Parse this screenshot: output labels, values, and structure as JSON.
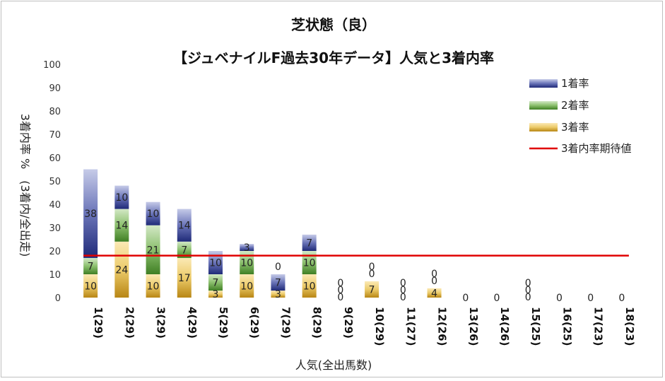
{
  "chart_data": {
    "type": "bar",
    "stacked": true,
    "title": "芝状態（良）",
    "subtitle": "【ジュベナイルF過去30年データ】人気と3着内率",
    "xlabel": "人気(全出馬数)",
    "ylabel": "3着内率 %　(3着内/全出走)",
    "ylim": [
      0,
      100
    ],
    "yticks": [
      0,
      10,
      20,
      30,
      40,
      50,
      60,
      70,
      80,
      90,
      100
    ],
    "grid": false,
    "legend_position": "top-right",
    "categories": [
      "1(29)",
      "2(29)",
      "3(29)",
      "4(29)",
      "5(29)",
      "6(29)",
      "7(29)",
      "8(29)",
      "9(29)",
      "10(29)",
      "11(27)",
      "12(26)",
      "13(26)",
      "14(26)",
      "15(25)",
      "16(25)",
      "17(23)",
      "18(23)"
    ],
    "series": [
      {
        "name": "3着率",
        "color": "#d9a520",
        "values": [
          10,
          24,
          10,
          17,
          3,
          10,
          3,
          10,
          0,
          7,
          0,
          4,
          0,
          0,
          0,
          0,
          0,
          0
        ]
      },
      {
        "name": "2着率",
        "color": "#5a9a3a",
        "values": [
          7,
          14,
          21,
          7,
          7,
          10,
          0,
          10,
          0,
          0,
          0,
          0,
          0,
          0,
          0,
          0,
          0,
          0
        ]
      },
      {
        "name": "1着率",
        "color": "#2e3a8c",
        "values": [
          38,
          10,
          10,
          14,
          10,
          3,
          7,
          7,
          0,
          0,
          0,
          0,
          0,
          0,
          0,
          0,
          0,
          0
        ]
      }
    ],
    "bar_labels": [
      [
        "10",
        "7",
        "38"
      ],
      [
        "24",
        "14",
        "10"
      ],
      [
        "10",
        "21",
        "10"
      ],
      [
        "17",
        "7",
        "14"
      ],
      [
        "3",
        "7",
        "10"
      ],
      [
        "10",
        "10",
        "3"
      ],
      [
        "3",
        "0",
        "7"
      ],
      [
        "10",
        "10",
        "7"
      ],
      [
        "0",
        "0",
        "0"
      ],
      [
        "7",
        "0",
        "0"
      ],
      [
        "0",
        "0",
        "0"
      ],
      [
        "4",
        "0",
        "0"
      ],
      [
        "0"
      ],
      [
        "0"
      ],
      [
        "0",
        "0",
        "0"
      ],
      [
        "0"
      ],
      [
        "0"
      ],
      [
        "0"
      ]
    ],
    "reference_line": {
      "name": "3着内率期待値",
      "color": "#e00000",
      "value": 18
    }
  }
}
